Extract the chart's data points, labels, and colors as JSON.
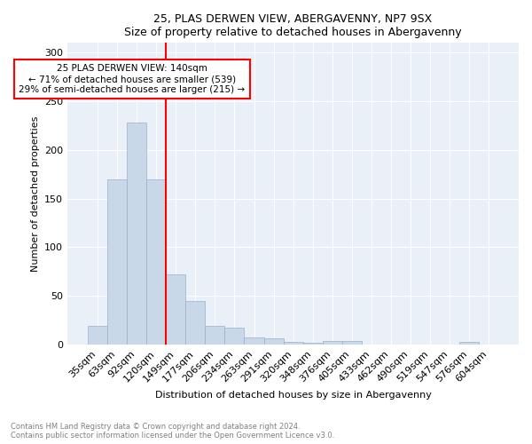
{
  "title1": "25, PLAS DERWEN VIEW, ABERGAVENNY, NP7 9SX",
  "title2": "Size of property relative to detached houses in Abergavenny",
  "xlabel": "Distribution of detached houses by size in Abergavenny",
  "ylabel": "Number of detached properties",
  "bar_labels": [
    "35sqm",
    "63sqm",
    "92sqm",
    "120sqm",
    "149sqm",
    "177sqm",
    "206sqm",
    "234sqm",
    "263sqm",
    "291sqm",
    "320sqm",
    "348sqm",
    "376sqm",
    "405sqm",
    "433sqm",
    "462sqm",
    "490sqm",
    "519sqm",
    "547sqm",
    "576sqm",
    "604sqm"
  ],
  "bar_values": [
    19,
    170,
    228,
    170,
    72,
    45,
    19,
    17,
    7,
    6,
    3,
    2,
    4,
    4,
    0,
    0,
    0,
    0,
    0,
    3,
    0
  ],
  "bar_color": "#c8d8e8",
  "bar_edge_color": "#9ab0c8",
  "vline_color": "red",
  "annotation_text": "25 PLAS DERWEN VIEW: 140sqm\n← 71% of detached houses are smaller (539)\n29% of semi-detached houses are larger (215) →",
  "annotation_box_color": "white",
  "annotation_box_edge": "red",
  "ylim": [
    0,
    310
  ],
  "yticks": [
    0,
    50,
    100,
    150,
    200,
    250,
    300
  ],
  "footnote": "Contains HM Land Registry data © Crown copyright and database right 2024.\nContains public sector information licensed under the Open Government Licence v3.0.",
  "plot_bg_color": "#eaf0f8"
}
